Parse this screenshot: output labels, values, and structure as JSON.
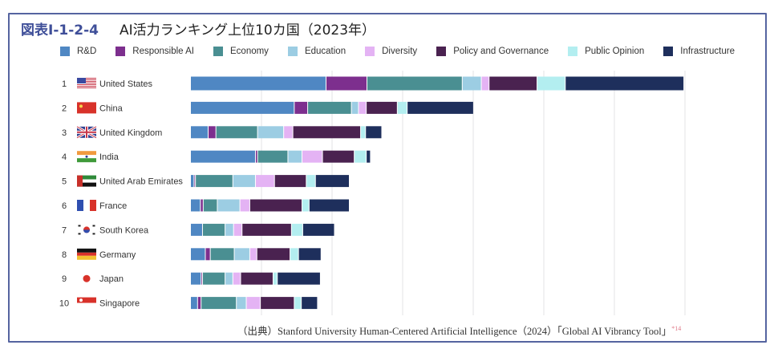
{
  "header": {
    "figure_number": "図表Ⅰ-1-2-4",
    "title": "AI活力ランキング上位10カ国（2023年）"
  },
  "source": {
    "text": "（出典）Stanford University Human-Centered Artificial Intelligence（2024）「Global AI Vibrancy Tool」",
    "note": "*14"
  },
  "chart_data": {
    "type": "bar",
    "orientation": "horizontal",
    "stacked": true,
    "grid": true,
    "legend_position": "top",
    "xlim": [
      0,
      70
    ],
    "categories": [
      "United States",
      "China",
      "United Kingdom",
      "India",
      "United Arab Emirates",
      "France",
      "South Korea",
      "Germany",
      "Japan",
      "Singapore"
    ],
    "ranks": [
      "1",
      "2",
      "3",
      "4",
      "5",
      "6",
      "7",
      "8",
      "9",
      "10"
    ],
    "flags": [
      "us-flag",
      "china-flag",
      "uk-flag",
      "india-flag",
      "uae-flag",
      "france-flag",
      "south-korea-flag",
      "germany-flag",
      "japan-flag",
      "singapore-flag"
    ],
    "series": [
      {
        "name": "R&D",
        "color": "#4f87c3",
        "values": [
          19.2,
          14.7,
          2.5,
          9.2,
          0.5,
          1.4,
          1.7,
          2.1,
          1.5,
          1.0
        ]
      },
      {
        "name": "Responsible AI",
        "color": "#7d2f8e",
        "values": [
          5.8,
          1.9,
          1.1,
          0.3,
          0.2,
          0.4,
          0.0,
          0.7,
          0.2,
          0.5
        ]
      },
      {
        "name": "Economy",
        "color": "#4a8f92",
        "values": [
          13.5,
          6.2,
          5.9,
          4.3,
          5.3,
          2.0,
          3.2,
          3.4,
          3.2,
          5.0
        ]
      },
      {
        "name": "Education",
        "color": "#9ccde3",
        "values": [
          2.7,
          1.0,
          3.7,
          2.0,
          3.2,
          3.2,
          1.2,
          2.2,
          1.1,
          1.4
        ]
      },
      {
        "name": "Diversity",
        "color": "#e4b3f4",
        "values": [
          1.1,
          1.1,
          1.3,
          2.9,
          2.7,
          1.4,
          1.2,
          1.0,
          1.1,
          2.0
        ]
      },
      {
        "name": "Policy and Governance",
        "color": "#4a2250",
        "values": [
          6.8,
          4.4,
          9.6,
          4.5,
          4.5,
          7.4,
          7.0,
          4.7,
          4.6,
          4.8
        ]
      },
      {
        "name": "Public Opinion",
        "color": "#b3eef0",
        "values": [
          4.0,
          1.4,
          0.7,
          1.7,
          1.3,
          1.0,
          1.6,
          1.2,
          0.6,
          1.0
        ]
      },
      {
        "name": "Infrastructure",
        "color": "#1e2f5c",
        "values": [
          16.8,
          9.4,
          2.3,
          0.6,
          4.8,
          5.7,
          4.5,
          3.2,
          6.1,
          2.3
        ]
      }
    ]
  }
}
